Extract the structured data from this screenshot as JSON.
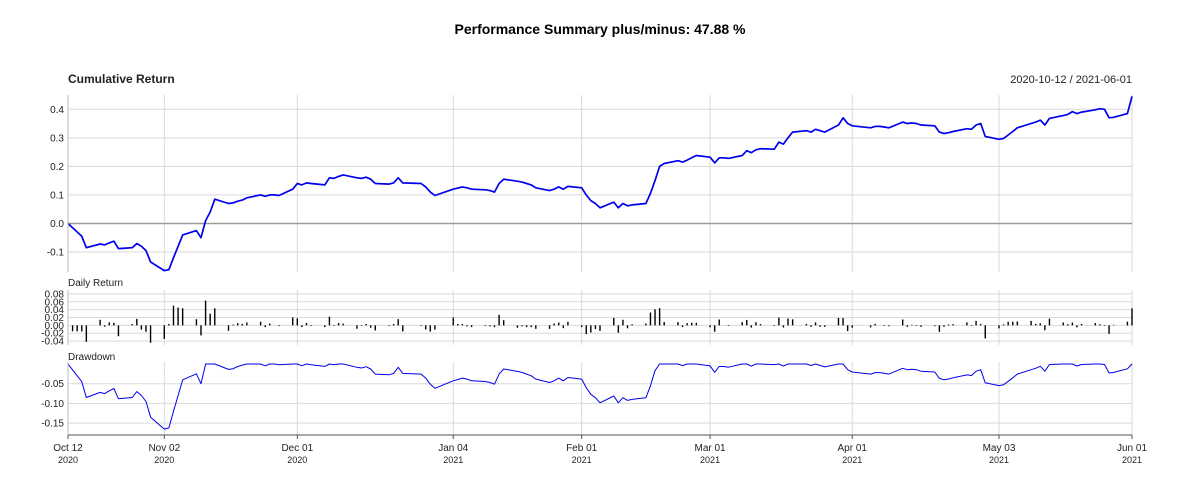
{
  "chart_data": {
    "type": "line",
    "title": "Performance Summary  plus/minus: 47.88 %",
    "date_range": "2020-10-12 / 2021-06-01",
    "x_ticks": [
      {
        "date": "2020-10-12",
        "label": "Oct 12",
        "year": "2020"
      },
      {
        "date": "2020-11-02",
        "label": "Nov 02",
        "year": "2020"
      },
      {
        "date": "2020-12-01",
        "label": "Dec 01",
        "year": "2020"
      },
      {
        "date": "2021-01-04",
        "label": "Jan 04",
        "year": "2021"
      },
      {
        "date": "2021-02-01",
        "label": "Feb 01",
        "year": "2021"
      },
      {
        "date": "2021-03-01",
        "label": "Mar 01",
        "year": "2021"
      },
      {
        "date": "2021-04-01",
        "label": "Apr 01",
        "year": "2021"
      },
      {
        "date": "2021-05-03",
        "label": "May 03",
        "year": "2021"
      },
      {
        "date": "2021-06-01",
        "label": "Jun 01",
        "year": "2021"
      }
    ],
    "panels": [
      {
        "key": "cumulative",
        "label": "Cumulative Return",
        "type": "line",
        "color": "#0000ee",
        "ylim": [
          -0.17,
          0.45
        ],
        "yticks": [
          -0.1,
          0.0,
          0.1,
          0.2,
          0.3,
          0.4
        ],
        "ytick_labels": [
          "-0.1",
          "0.0",
          "0.1",
          "0.2",
          "0.3",
          "0.4"
        ],
        "baseline": 0.0,
        "points": [
          [
            "2020-10-12",
            0.0
          ],
          [
            "2020-10-13",
            -0.015
          ],
          [
            "2020-10-14",
            -0.03
          ],
          [
            "2020-10-15",
            -0.045
          ],
          [
            "2020-10-16",
            -0.085
          ],
          [
            "2020-10-19",
            -0.072
          ],
          [
            "2020-10-20",
            -0.075
          ],
          [
            "2020-10-21",
            -0.068
          ],
          [
            "2020-10-22",
            -0.062
          ],
          [
            "2020-10-23",
            -0.088
          ],
          [
            "2020-10-26",
            -0.085
          ],
          [
            "2020-10-27",
            -0.07
          ],
          [
            "2020-10-28",
            -0.08
          ],
          [
            "2020-10-29",
            -0.095
          ],
          [
            "2020-10-30",
            -0.135
          ],
          [
            "2020-11-02",
            -0.165
          ],
          [
            "2020-11-03",
            -0.162
          ],
          [
            "2020-11-04",
            -0.12
          ],
          [
            "2020-11-05",
            -0.08
          ],
          [
            "2020-11-06",
            -0.04
          ],
          [
            "2020-11-09",
            -0.025
          ],
          [
            "2020-11-10",
            -0.05
          ],
          [
            "2020-11-11",
            0.01
          ],
          [
            "2020-11-12",
            0.04
          ],
          [
            "2020-11-13",
            0.085
          ],
          [
            "2020-11-16",
            0.07
          ],
          [
            "2020-11-17",
            0.072
          ],
          [
            "2020-11-18",
            0.078
          ],
          [
            "2020-11-19",
            0.082
          ],
          [
            "2020-11-20",
            0.09
          ],
          [
            "2020-11-23",
            0.1
          ],
          [
            "2020-11-24",
            0.095
          ],
          [
            "2020-11-25",
            0.1
          ],
          [
            "2020-11-26",
            0.1
          ],
          [
            "2020-11-27",
            0.098
          ],
          [
            "2020-11-30",
            0.12
          ],
          [
            "2020-12-01",
            0.14
          ],
          [
            "2020-12-02",
            0.135
          ],
          [
            "2020-12-03",
            0.142
          ],
          [
            "2020-12-04",
            0.14
          ],
          [
            "2020-12-07",
            0.135
          ],
          [
            "2020-12-08",
            0.16
          ],
          [
            "2020-12-09",
            0.158
          ],
          [
            "2020-12-10",
            0.165
          ],
          [
            "2020-12-11",
            0.17
          ],
          [
            "2020-12-14",
            0.16
          ],
          [
            "2020-12-15",
            0.158
          ],
          [
            "2020-12-16",
            0.162
          ],
          [
            "2020-12-17",
            0.155
          ],
          [
            "2020-12-18",
            0.14
          ],
          [
            "2020-12-21",
            0.138
          ],
          [
            "2020-12-22",
            0.142
          ],
          [
            "2020-12-23",
            0.16
          ],
          [
            "2020-12-24",
            0.142
          ],
          [
            "2020-12-28",
            0.14
          ],
          [
            "2020-12-29",
            0.128
          ],
          [
            "2020-12-30",
            0.11
          ],
          [
            "2020-12-31",
            0.098
          ],
          [
            "2021-01-04",
            0.12
          ],
          [
            "2021-01-05",
            0.124
          ],
          [
            "2021-01-06",
            0.128
          ],
          [
            "2021-01-07",
            0.125
          ],
          [
            "2021-01-08",
            0.12
          ],
          [
            "2021-01-11",
            0.118
          ],
          [
            "2021-01-12",
            0.115
          ],
          [
            "2021-01-13",
            0.11
          ],
          [
            "2021-01-14",
            0.14
          ],
          [
            "2021-01-15",
            0.155
          ],
          [
            "2021-01-18",
            0.148
          ],
          [
            "2021-01-19",
            0.145
          ],
          [
            "2021-01-20",
            0.14
          ],
          [
            "2021-01-21",
            0.135
          ],
          [
            "2021-01-22",
            0.125
          ],
          [
            "2021-01-25",
            0.115
          ],
          [
            "2021-01-26",
            0.12
          ],
          [
            "2021-01-27",
            0.128
          ],
          [
            "2021-01-28",
            0.12
          ],
          [
            "2021-01-29",
            0.13
          ],
          [
            "2021-02-01",
            0.125
          ],
          [
            "2021-02-02",
            0.1
          ],
          [
            "2021-02-03",
            0.08
          ],
          [
            "2021-02-04",
            0.07
          ],
          [
            "2021-02-05",
            0.055
          ],
          [
            "2021-02-08",
            0.075
          ],
          [
            "2021-02-09",
            0.055
          ],
          [
            "2021-02-10",
            0.07
          ],
          [
            "2021-02-11",
            0.062
          ],
          [
            "2021-02-12",
            0.065
          ],
          [
            "2021-02-15",
            0.07
          ],
          [
            "2021-02-16",
            0.105
          ],
          [
            "2021-02-17",
            0.15
          ],
          [
            "2021-02-18",
            0.2
          ],
          [
            "2021-02-19",
            0.21
          ],
          [
            "2021-02-22",
            0.22
          ],
          [
            "2021-02-23",
            0.215
          ],
          [
            "2021-02-24",
            0.222
          ],
          [
            "2021-02-25",
            0.23
          ],
          [
            "2021-02-26",
            0.238
          ],
          [
            "2021-03-01",
            0.232
          ],
          [
            "2021-03-02",
            0.212
          ],
          [
            "2021-03-03",
            0.23
          ],
          [
            "2021-03-04",
            0.23
          ],
          [
            "2021-03-05",
            0.228
          ],
          [
            "2021-03-08",
            0.238
          ],
          [
            "2021-03-09",
            0.255
          ],
          [
            "2021-03-10",
            0.248
          ],
          [
            "2021-03-11",
            0.258
          ],
          [
            "2021-03-12",
            0.262
          ],
          [
            "2021-03-15",
            0.26
          ],
          [
            "2021-03-16",
            0.285
          ],
          [
            "2021-03-17",
            0.278
          ],
          [
            "2021-03-18",
            0.3
          ],
          [
            "2021-03-19",
            0.32
          ],
          [
            "2021-03-22",
            0.325
          ],
          [
            "2021-03-23",
            0.32
          ],
          [
            "2021-03-24",
            0.33
          ],
          [
            "2021-03-25",
            0.325
          ],
          [
            "2021-03-26",
            0.32
          ],
          [
            "2021-03-29",
            0.345
          ],
          [
            "2021-03-30",
            0.37
          ],
          [
            "2021-03-31",
            0.35
          ],
          [
            "2021-04-01",
            0.342
          ],
          [
            "2021-04-05",
            0.335
          ],
          [
            "2021-04-06",
            0.34
          ],
          [
            "2021-04-07",
            0.34
          ],
          [
            "2021-04-08",
            0.338
          ],
          [
            "2021-04-09",
            0.335
          ],
          [
            "2021-04-12",
            0.355
          ],
          [
            "2021-04-13",
            0.35
          ],
          [
            "2021-04-14",
            0.352
          ],
          [
            "2021-04-15",
            0.35
          ],
          [
            "2021-04-16",
            0.345
          ],
          [
            "2021-04-19",
            0.342
          ],
          [
            "2021-04-20",
            0.32
          ],
          [
            "2021-04-21",
            0.315
          ],
          [
            "2021-04-22",
            0.318
          ],
          [
            "2021-04-23",
            0.322
          ],
          [
            "2021-04-26",
            0.332
          ],
          [
            "2021-04-27",
            0.33
          ],
          [
            "2021-04-28",
            0.345
          ],
          [
            "2021-04-29",
            0.35
          ],
          [
            "2021-04-30",
            0.305
          ],
          [
            "2021-05-03",
            0.295
          ],
          [
            "2021-05-04",
            0.298
          ],
          [
            "2021-05-05",
            0.31
          ],
          [
            "2021-05-06",
            0.322
          ],
          [
            "2021-05-07",
            0.335
          ],
          [
            "2021-05-10",
            0.35
          ],
          [
            "2021-05-11",
            0.355
          ],
          [
            "2021-05-12",
            0.362
          ],
          [
            "2021-05-13",
            0.345
          ],
          [
            "2021-05-14",
            0.368
          ],
          [
            "2021-05-17",
            0.378
          ],
          [
            "2021-05-18",
            0.382
          ],
          [
            "2021-05-19",
            0.392
          ],
          [
            "2021-05-20",
            0.385
          ],
          [
            "2021-05-21",
            0.39
          ],
          [
            "2021-05-24",
            0.398
          ],
          [
            "2021-05-25",
            0.402
          ],
          [
            "2021-05-26",
            0.4
          ],
          [
            "2021-05-27",
            0.37
          ],
          [
            "2021-05-28",
            0.372
          ],
          [
            "2021-05-31",
            0.385
          ],
          [
            "2021-06-01",
            0.445
          ]
        ]
      },
      {
        "key": "daily",
        "label": "Daily Return",
        "type": "bar",
        "color": "#000000",
        "ylim": [
          -0.05,
          0.09
        ],
        "yticks": [
          -0.04,
          -0.02,
          0.0,
          0.02,
          0.04,
          0.06,
          0.08
        ],
        "ytick_labels": [
          "-0.04",
          "-0.02",
          "0.00",
          "0.02",
          "0.04",
          "0.06",
          "0.08"
        ],
        "derived_from": "cumulative"
      },
      {
        "key": "drawdown",
        "label": "Drawdown",
        "type": "line",
        "color": "#0000ee",
        "ylim": [
          -0.18,
          0.005
        ],
        "yticks": [
          -0.15,
          -0.1,
          -0.05
        ],
        "ytick_labels": [
          "-0.15",
          "-0.10",
          "-0.05"
        ],
        "derived_from": "cumulative"
      }
    ]
  }
}
